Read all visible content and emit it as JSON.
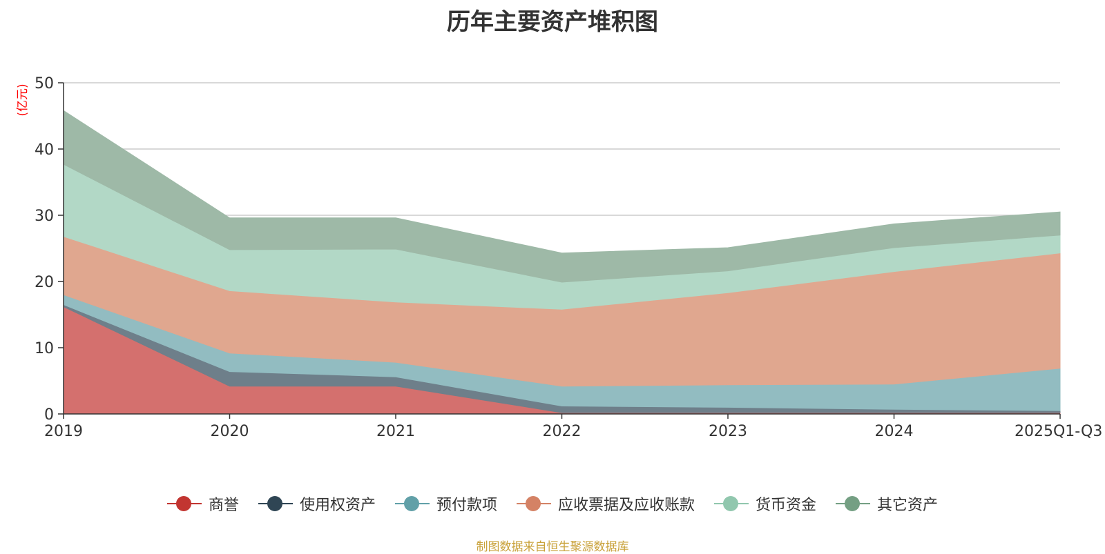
{
  "chart_data": {
    "type": "area",
    "stacked": true,
    "title": "历年主要资产堆积图",
    "ylabel": "(亿元)",
    "xlabel": "",
    "ylim": [
      0,
      50
    ],
    "yticks": [
      0,
      10,
      20,
      30,
      40,
      50
    ],
    "categories": [
      "2019",
      "2020",
      "2021",
      "2022",
      "2023",
      "2024",
      "2025Q1-Q3"
    ],
    "series": [
      {
        "name": "商誉",
        "color": "#c23531",
        "fill": "#d4706e",
        "values": [
          16.2,
          4.2,
          4.2,
          0.2,
          0.2,
          0.2,
          0.2
        ]
      },
      {
        "name": "使用权资产",
        "color": "#2f4554",
        "fill": "#6e7f8a",
        "values": [
          0.3,
          2.2,
          1.4,
          1.0,
          0.8,
          0.5,
          0.3
        ]
      },
      {
        "name": "预付款项",
        "color": "#61a0a8",
        "fill": "#92bcc1",
        "values": [
          1.5,
          2.8,
          2.2,
          3.0,
          3.4,
          3.8,
          6.4
        ]
      },
      {
        "name": "应收票据及应收账款",
        "color": "#d48265",
        "fill": "#e0a78f",
        "values": [
          8.8,
          9.4,
          9.1,
          11.6,
          13.9,
          17.0,
          17.4
        ]
      },
      {
        "name": "货币资金",
        "color": "#91c7ae",
        "fill": "#b2d8c6",
        "values": [
          10.9,
          6.2,
          8.0,
          4.1,
          3.3,
          3.6,
          2.7
        ]
      },
      {
        "name": "其它资产",
        "color": "#749f83",
        "fill": "#9eb9a7",
        "values": [
          8.1,
          4.8,
          4.7,
          4.4,
          3.5,
          3.6,
          3.5
        ]
      }
    ],
    "source": "制图数据来自恒生聚源数据库"
  }
}
